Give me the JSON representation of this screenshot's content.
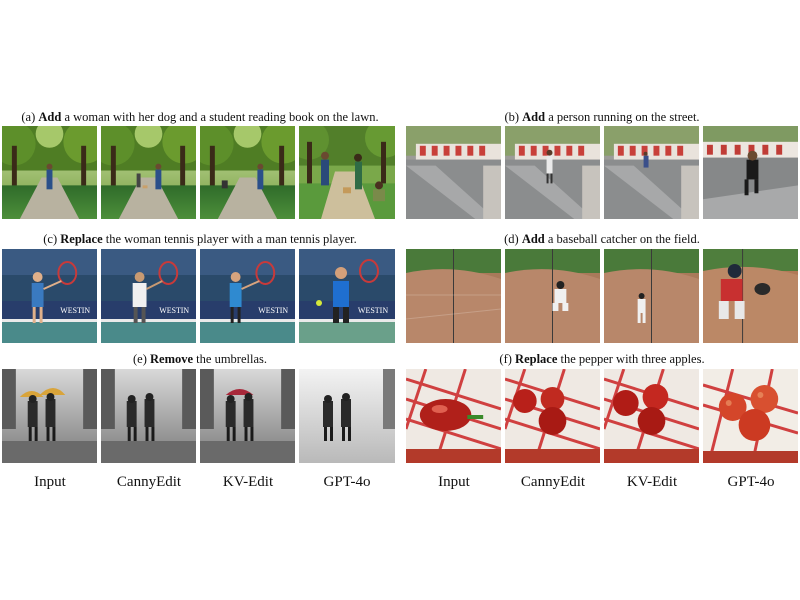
{
  "captions": [
    {
      "tag": "(a)",
      "verb": "Add",
      "rest": "a woman with her dog and a student reading book on the lawn."
    },
    {
      "tag": "(b)",
      "verb": "Add",
      "rest": "a person running on the street."
    },
    {
      "tag": "(c)",
      "verb": "Replace",
      "rest": "the woman tennis player with a man tennis player."
    },
    {
      "tag": "(d)",
      "verb": "Add",
      "rest": "a baseball catcher on the field."
    },
    {
      "tag": "(e)",
      "verb": "Remove",
      "rest": "the umbrellas."
    },
    {
      "tag": "(f)",
      "verb": "Replace",
      "rest": "the pepper with three apples."
    }
  ],
  "column_labels": [
    "Input",
    "CannyEdit",
    "KV-Edit",
    "GPT-4o"
  ],
  "sign_text": "WESTIN"
}
